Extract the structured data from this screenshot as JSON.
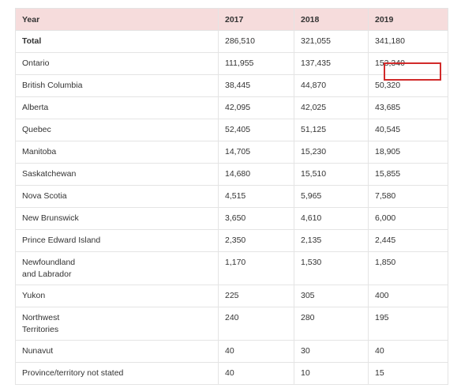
{
  "table": {
    "headers": [
      "Year",
      "2017",
      "2018",
      "2019"
    ],
    "rows": [
      {
        "label": "Total",
        "values": [
          "286,510",
          "321,055",
          "341,180"
        ]
      },
      {
        "label": "Ontario",
        "values": [
          "111,955",
          "137,435",
          "153,340"
        ]
      },
      {
        "label": "British Columbia",
        "values": [
          "38,445",
          "44,870",
          "50,320"
        ]
      },
      {
        "label": "Alberta",
        "values": [
          "42,095",
          "42,025",
          "43,685"
        ]
      },
      {
        "label": "Quebec",
        "values": [
          "52,405",
          "51,125",
          "40,545"
        ]
      },
      {
        "label": "Manitoba",
        "values": [
          "14,705",
          "15,230",
          "18,905"
        ]
      },
      {
        "label": "Saskatchewan",
        "values": [
          "14,680",
          "15,510",
          "15,855"
        ]
      },
      {
        "label": "Nova Scotia",
        "values": [
          "4,515",
          "5,965",
          "7,580"
        ]
      },
      {
        "label": "New Brunswick",
        "values": [
          "3,650",
          "4,610",
          "6,000"
        ]
      },
      {
        "label": "Prince Edward Island",
        "values": [
          "2,350",
          "2,135",
          "2,445"
        ]
      },
      {
        "label": "Newfoundland\nand Labrador",
        "values": [
          "1,170",
          "1,530",
          "1,850"
        ]
      },
      {
        "label": "Yukon",
        "values": [
          "225",
          "305",
          "400"
        ]
      },
      {
        "label": "Northwest\nTerritories",
        "values": [
          "240",
          "280",
          "195"
        ]
      },
      {
        "label": "Nunavut",
        "values": [
          "40",
          "30",
          "40"
        ]
      },
      {
        "label": "Province/territory not stated",
        "values": [
          "40",
          "10",
          "15"
        ]
      }
    ]
  },
  "highlight": {
    "row": "Ontario",
    "column": "2019",
    "color": "#d12a2a"
  },
  "colors": {
    "header_bg": "#f6dcdc",
    "border": "#e4e4e4"
  }
}
